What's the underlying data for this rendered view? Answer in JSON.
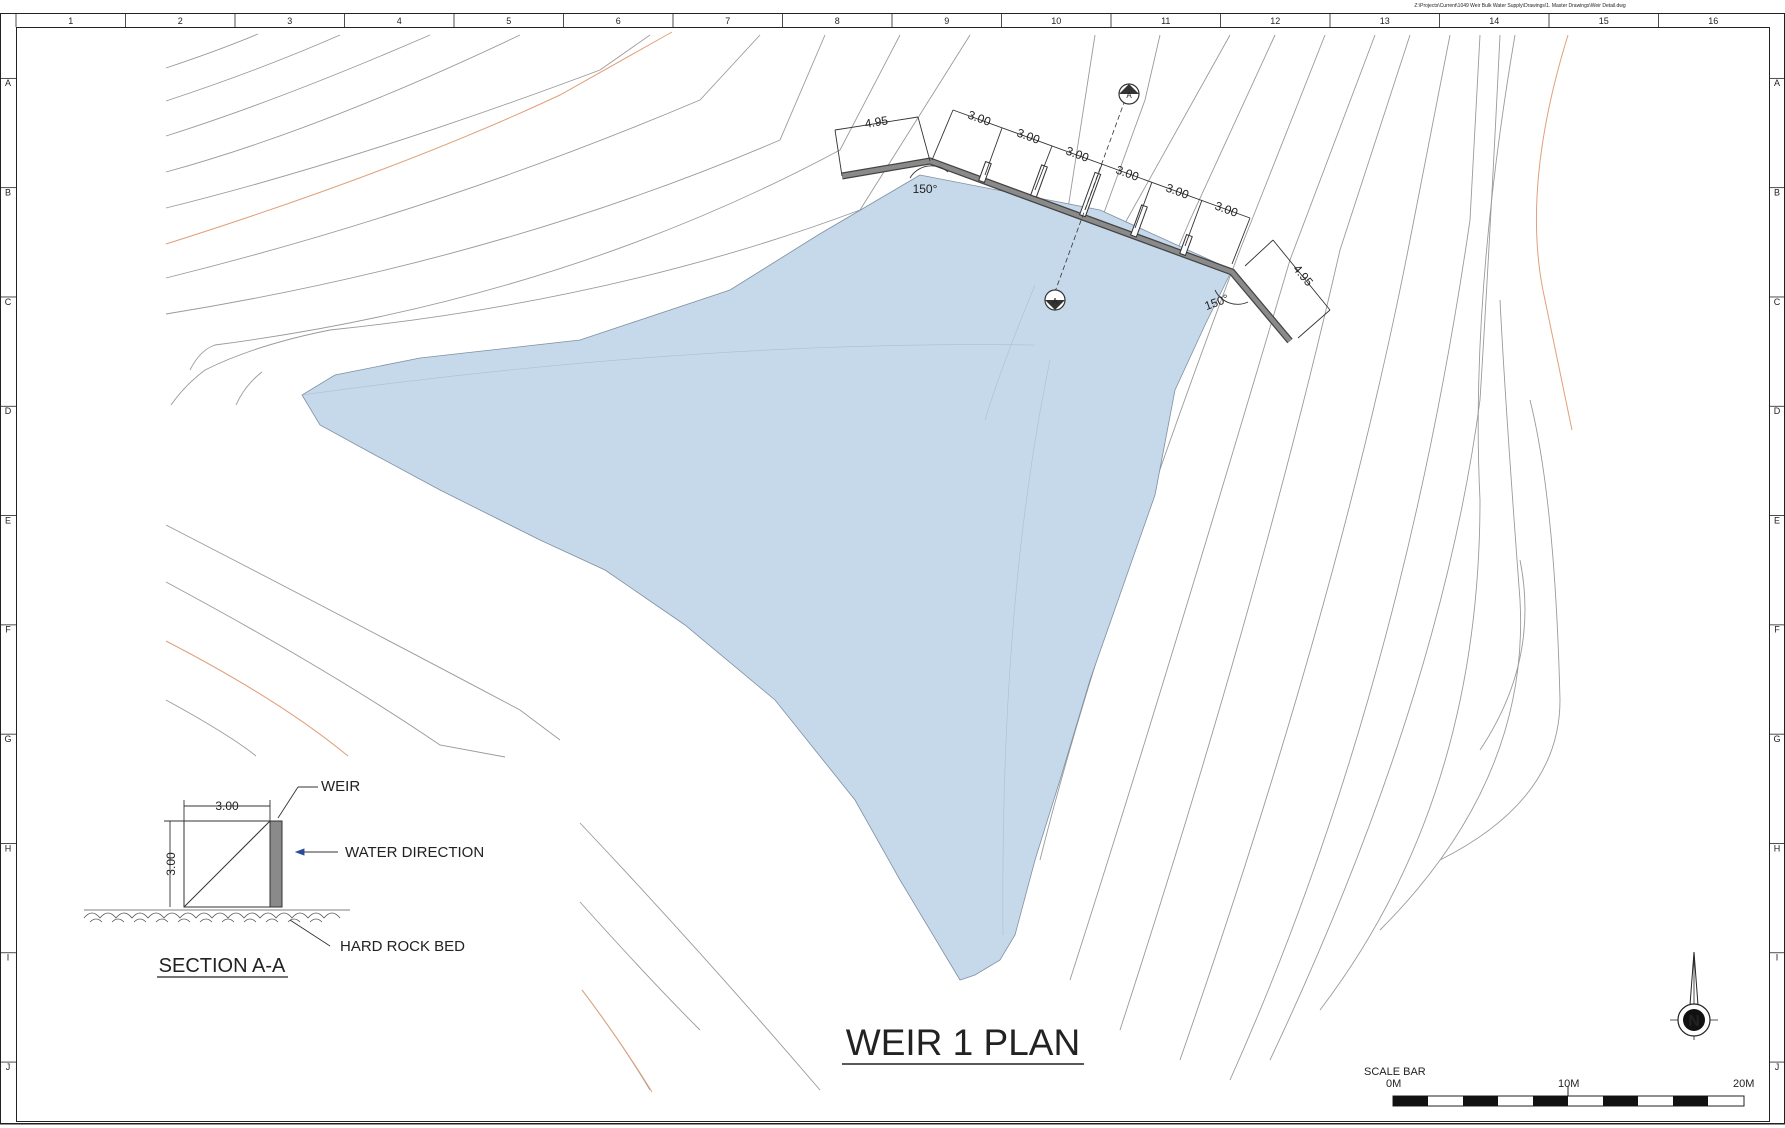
{
  "file_path": "Z:\\Projects\\Current\\1049 Weir Bulk Water Supply\\Drawings\\1. Master Drawings\\Weir Detail.dwg",
  "grid": {
    "columns": [
      "1",
      "2",
      "3",
      "4",
      "5",
      "6",
      "7",
      "8",
      "9",
      "10",
      "11",
      "12",
      "13",
      "14",
      "15",
      "16"
    ],
    "rows": [
      "A",
      "B",
      "C",
      "D",
      "E",
      "F",
      "G",
      "H",
      "I",
      "J"
    ]
  },
  "plan": {
    "title": "WEIR 1 PLAN",
    "dims": {
      "wing_length": "4.95",
      "bay_spacing": "3.00",
      "angle": "150°"
    },
    "section_marker": "A"
  },
  "section": {
    "title": "SECTION A-A",
    "width_dim": "3.00",
    "height_dim": "3.00",
    "labels": {
      "weir": "WEIR",
      "water_direction": "WATER DIRECTION",
      "rock_bed": "HARD ROCK BED"
    }
  },
  "scale_bar": {
    "title": "SCALE BAR",
    "ticks": [
      "0M",
      "10M",
      "20M"
    ]
  },
  "north_label": "N",
  "colors": {
    "water": "#c5d9ea",
    "contour": "#8a8a8a",
    "contour_index": "#e0a07a",
    "weir": "#6b6b6b"
  }
}
